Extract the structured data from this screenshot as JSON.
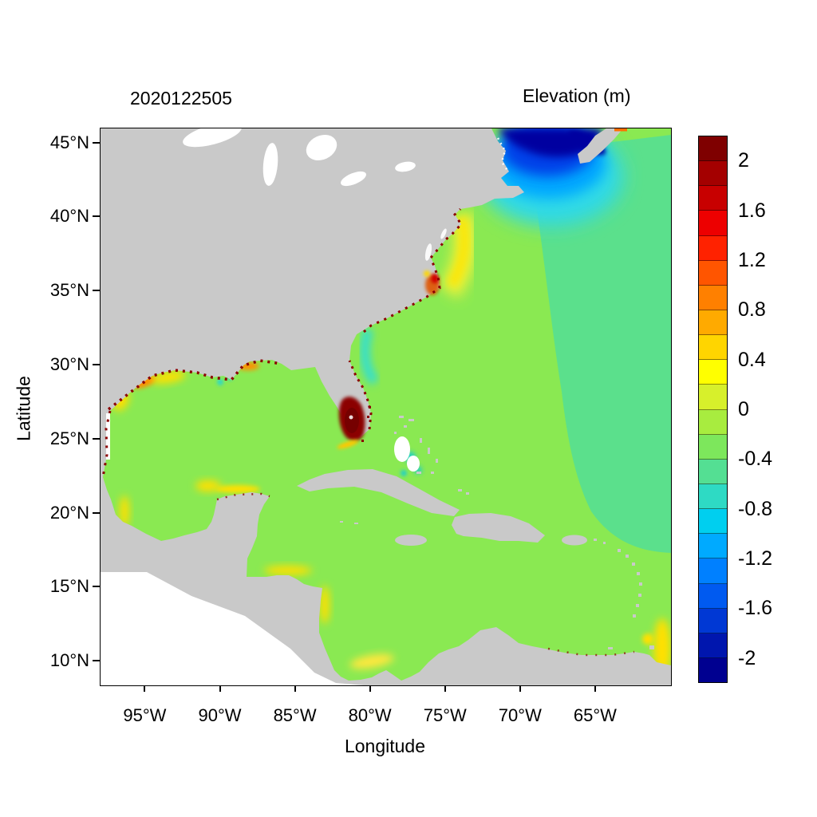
{
  "figure": {
    "timestamp": "2020122505",
    "colorbar_title": "Elevation (m)",
    "xlabel": "Longitude",
    "ylabel": "Latitude"
  },
  "axes": {
    "lon_range": [
      -98,
      -60
    ],
    "lat_range": [
      8.4,
      46
    ],
    "xticks": [
      {
        "label": "95°W",
        "lon": -95
      },
      {
        "label": "90°W",
        "lon": -90
      },
      {
        "label": "85°W",
        "lon": -85
      },
      {
        "label": "80°W",
        "lon": -80
      },
      {
        "label": "75°W",
        "lon": -75
      },
      {
        "label": "70°W",
        "lon": -70
      },
      {
        "label": "65°W",
        "lon": -65
      }
    ],
    "yticks": [
      {
        "label": "45°N",
        "lat": 45
      },
      {
        "label": "40°N",
        "lat": 40
      },
      {
        "label": "35°N",
        "lat": 35
      },
      {
        "label": "30°N",
        "lat": 30
      },
      {
        "label": "25°N",
        "lat": 25
      },
      {
        "label": "20°N",
        "lat": 20
      },
      {
        "label": "15°N",
        "lat": 15
      },
      {
        "label": "10°N",
        "lat": 10
      }
    ]
  },
  "colorbar": {
    "range": [
      -2.2,
      2.2
    ],
    "block_step": 0.2,
    "colors": [
      "#7F0000",
      "#A40000",
      "#C80000",
      "#ED0000",
      "#FF2200",
      "#FF5500",
      "#FF8000",
      "#FFAA00",
      "#FFD500",
      "#FFFF00",
      "#D7F02B",
      "#A8EC3F",
      "#7DE75C",
      "#54DF93",
      "#2EDAC4",
      "#00CFEF",
      "#00AAFF",
      "#0080FF",
      "#005AF0",
      "#0038D4",
      "#0016AE",
      "#000090"
    ],
    "tick_labels": [
      {
        "label": "2",
        "value": 2
      },
      {
        "label": "1.6",
        "value": 1.6
      },
      {
        "label": "1.2",
        "value": 1.2
      },
      {
        "label": "0.8",
        "value": 0.8
      },
      {
        "label": "0.4",
        "value": 0.4
      },
      {
        "label": "0",
        "value": 0
      },
      {
        "label": "-0.4",
        "value": -0.4
      },
      {
        "label": "-0.8",
        "value": -0.8
      },
      {
        "label": "-1.2",
        "value": -1.2
      },
      {
        "label": "-1.6",
        "value": -1.6
      },
      {
        "label": "-2",
        "value": -2
      }
    ]
  },
  "chart_data": {
    "type": "heatmap",
    "title": "Elevation (m)",
    "timestamp": "2020122505",
    "xlabel": "Longitude",
    "ylabel": "Latitude",
    "x_ticks": [
      "95°W",
      "90°W",
      "85°W",
      "80°W",
      "75°W",
      "70°W",
      "65°W"
    ],
    "y_ticks": [
      "45°N",
      "40°N",
      "35°N",
      "30°N",
      "25°N",
      "20°N",
      "15°N",
      "10°N"
    ],
    "lon_range_deg": [
      -98,
      -60
    ],
    "lat_range_deg": [
      8.4,
      46
    ],
    "colormap": "jet",
    "colorbar_ticks": [
      2,
      1.6,
      1.2,
      0.8,
      0.4,
      0,
      -0.4,
      -0.8,
      -1.2,
      -1.6,
      -2
    ],
    "colorbar_range": [
      -2.2,
      2.2
    ],
    "land_color": "#C9C9C9",
    "no_data_color": "#FFFFFF",
    "field_regions": [
      {
        "region": "Gulf of Mexico and Caribbean open water",
        "approx_elevation_m": 0.1
      },
      {
        "region": "Western Atlantic east of about 72°W",
        "approx_elevation_m": -0.15
      },
      {
        "region": "Gulf of Maine, Bay of Fundy and St. Lawrence estuary",
        "approx_elevation_m": -2.0,
        "note": "field minimum, dark blue grading through -1 and -0.4 (cyan) southward to about 41°N"
      },
      {
        "region": "Southwest Florida coast near 81°W, 26-28°N",
        "approx_elevation_m": 2.2,
        "note": "field maximum, dark red blob"
      },
      {
        "region": "Louisiana-Texas coastal strip",
        "approx_elevation_m": 1.0,
        "note": "speckled dark red, orange and yellow along shoreline, 0.4 to >2"
      },
      {
        "region": "Mid-Atlantic shelf off New Jersey to Cape Hatteras",
        "approx_elevation_m": 0.5,
        "note": "yellow band offshore"
      },
      {
        "region": "Pamlico Sound / Cape Hatteras sounds",
        "approx_elevation_m": 1.5,
        "note": "red-orange cluster"
      },
      {
        "region": "Georgia to northeast Florida shelf",
        "approx_elevation_m": -0.5,
        "note": "cyan strip along coast"
      },
      {
        "region": "Bahamas banks",
        "approx_elevation_m": -0.5,
        "note": "scattered teal patches with white dry banks"
      },
      {
        "region": "Yucatan, Honduras, Nicaragua, Colombia and Venezuela coasts",
        "approx_elevation_m": 0.5,
        "note": "yellow coastal fringes"
      }
    ]
  }
}
